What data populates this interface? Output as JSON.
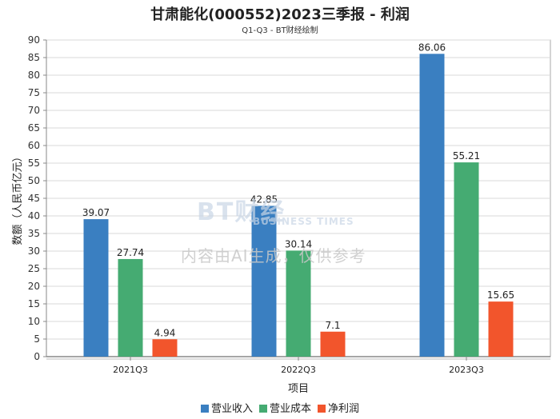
{
  "watermark": {
    "logo_main": "BT财经",
    "logo_sub": "BUSINESS TIMES",
    "text": "内容由AI生成，仅供参考"
  },
  "chart_data": {
    "type": "bar",
    "title": "甘肃能化(000552)2023三季报 - 利润",
    "subtitle": "Q1-Q3 - BT财经绘制",
    "xlabel": "项目",
    "ylabel": "数额（人民币亿元）",
    "categories": [
      "2021Q3",
      "2022Q3",
      "2023Q3"
    ],
    "ylim": [
      0,
      90
    ],
    "yticks": [
      0,
      5,
      10,
      15,
      20,
      25,
      30,
      35,
      40,
      45,
      50,
      55,
      60,
      65,
      70,
      75,
      80,
      85,
      90
    ],
    "grid": true,
    "legend_position": "bottom",
    "series": [
      {
        "name": "营业收入",
        "color": "#3a7fc1",
        "values": [
          39.07,
          42.85,
          86.06
        ],
        "labels": [
          "39.07",
          "42.85",
          "86.06"
        ]
      },
      {
        "name": "营业成本",
        "color": "#45ab72",
        "values": [
          27.74,
          30.14,
          55.21
        ],
        "labels": [
          "27.74",
          "30.14",
          "55.21"
        ]
      },
      {
        "name": "净利润",
        "color": "#f2552c",
        "values": [
          4.94,
          7.1,
          15.65
        ],
        "labels": [
          "4.94",
          "7.1",
          "15.65"
        ]
      }
    ]
  }
}
